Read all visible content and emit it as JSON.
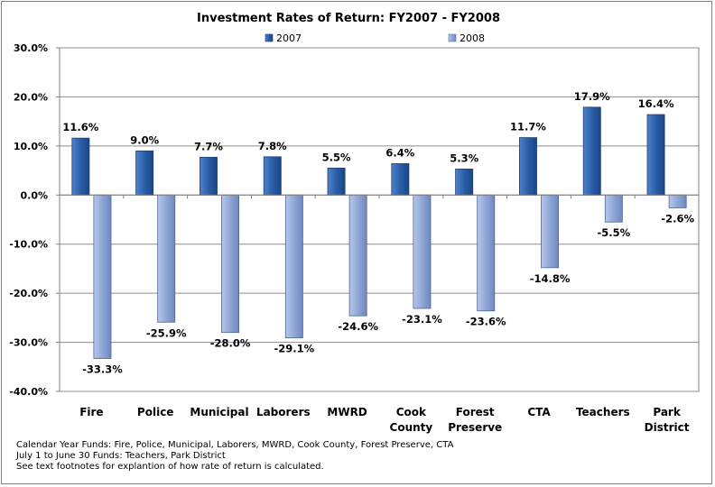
{
  "chart_data": {
    "type": "bar",
    "title": "Investment Rates of Return: FY2007  - FY2008",
    "categories": [
      "Fire",
      "Police",
      "Municipal",
      "Laborers",
      "MWRD",
      "Cook County",
      "Forest Preserve",
      "CTA",
      "Teachers",
      "Park District"
    ],
    "category_lines": [
      [
        "Fire"
      ],
      [
        "Police"
      ],
      [
        "Municipal"
      ],
      [
        "Laborers"
      ],
      [
        "MWRD"
      ],
      [
        "Cook",
        "County"
      ],
      [
        "Forest",
        "Preserve"
      ],
      [
        "CTA"
      ],
      [
        "Teachers"
      ],
      [
        "Park",
        "District"
      ]
    ],
    "series": [
      {
        "name": "2007",
        "values": [
          11.6,
          9.0,
          7.7,
          7.8,
          5.5,
          6.4,
          5.3,
          11.7,
          17.9,
          16.4
        ],
        "labels": [
          "11.6%",
          "9.0%",
          "7.7%",
          "7.8%",
          "5.5%",
          "6.4%",
          "5.3%",
          "11.7%",
          "17.9%",
          "16.4%"
        ],
        "color": "#2a5ea8"
      },
      {
        "name": "2008",
        "values": [
          -33.3,
          -25.9,
          -28.0,
          -29.1,
          -24.6,
          -23.1,
          -23.6,
          -14.8,
          -5.5,
          -2.6
        ],
        "labels": [
          "-33.3%",
          "-25.9%",
          "-28.0%",
          "-29.1%",
          "-24.6%",
          "-23.1%",
          "-23.6%",
          "-14.8%",
          "-5.5%",
          "-2.6%"
        ],
        "color": "#8fa6d6"
      }
    ],
    "ylim": [
      -40,
      30
    ],
    "yticks": [
      30,
      20,
      10,
      0,
      -10,
      -20,
      -30,
      -40
    ],
    "ytick_labels": [
      "30.0%",
      "20.0%",
      "10.0%",
      "0.0%",
      "-10.0%",
      "-20.0%",
      "-30.0%",
      "-40.0%"
    ],
    "grid": true,
    "legend_position": "top"
  },
  "footnotes": [
    "Calendar Year Funds: Fire, Police, Municipal, Laborers, MWRD, Cook County, Forest Preserve, CTA",
    "July 1 to June 30 Funds: Teachers, Park District",
    "See text footnotes for explantion of how rate of return is calculated."
  ]
}
